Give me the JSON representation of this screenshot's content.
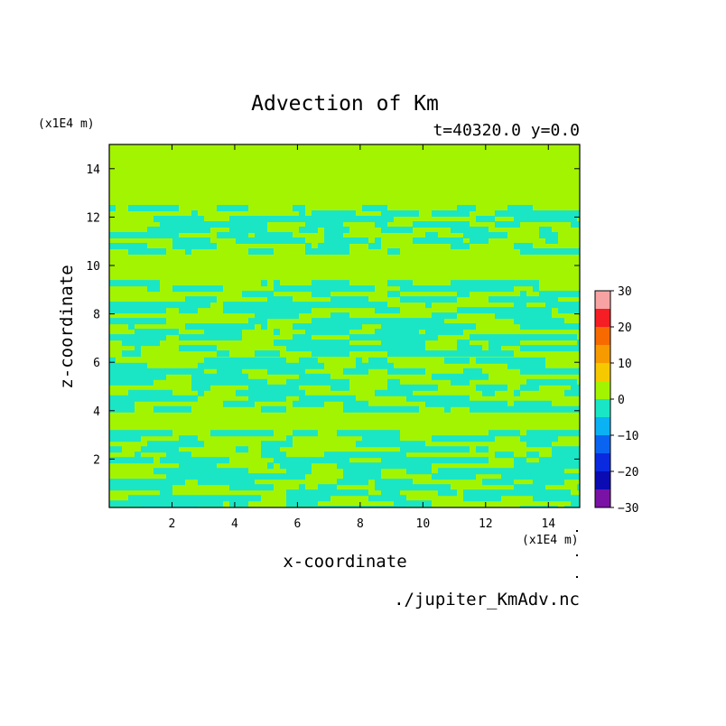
{
  "chart_data": {
    "type": "heatmap",
    "title": "Advection of Km",
    "subtitle": "t=40320.0 y=0.0",
    "xlabel": "x-coordinate",
    "ylabel": "z-coordinate",
    "x_unit": "(x1E4 m)",
    "y_unit": "(x1E4 m)",
    "xlim": [
      0,
      15
    ],
    "ylim": [
      0,
      15
    ],
    "x_ticks": [
      2,
      4,
      6,
      8,
      10,
      12,
      14
    ],
    "y_ticks": [
      2,
      4,
      6,
      8,
      10,
      12,
      14
    ],
    "x_tick_labels": [
      "2",
      "4",
      "6",
      "8",
      "10",
      "12",
      "14"
    ],
    "y_tick_labels": [
      "2",
      "4",
      "6",
      "8",
      "10",
      "12",
      "14"
    ],
    "colorbar": {
      "levels": [
        -30,
        -25,
        -20,
        -15,
        -10,
        -5,
        0,
        5,
        10,
        15,
        20,
        25,
        30
      ],
      "tick_values": [
        30,
        20,
        10,
        0,
        -10,
        -20,
        -30
      ],
      "tick_labels": [
        "30",
        "20",
        "10",
        "0",
        "−10",
        "−20",
        "−30"
      ],
      "colors": [
        "#7a12a6",
        "#0b0bb4",
        "#0a2ae0",
        "#0a64f2",
        "#0ab2f4",
        "#1ae6c6",
        "#a3f400",
        "#f6c800",
        "#f79a00",
        "#f76a00",
        "#f41e24",
        "#f7a3a3"
      ]
    },
    "background_level": "0 to 5",
    "anomaly_level": "-5 to 0",
    "anomaly_z_bands": [
      [
        0,
        3.2
      ],
      [
        4.0,
        6.2
      ],
      [
        6.3,
        9.4
      ],
      [
        10.6,
        12.5
      ]
    ],
    "grid": false,
    "legend_position": "right"
  },
  "footer": {
    "source_file": "./jupiter_KmAdv.nc"
  }
}
